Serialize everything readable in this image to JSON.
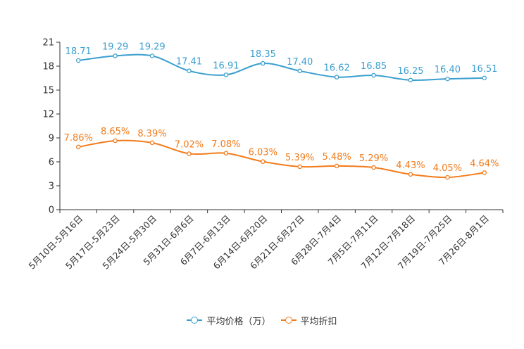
{
  "chart_data": {
    "type": "line",
    "categories": [
      "5月10日-5月16日",
      "5月17日-5月23日",
      "5月24日-5月30日",
      "5月31日-6月6日",
      "6月7日-6月13日",
      "6月14日-6月20日",
      "6月21日-6月27日",
      "6月28日-7月4日",
      "7月5日-7月11日",
      "7月12日-7月18日",
      "7月19日-7月25日",
      "7月26日-8月1日"
    ],
    "ylim": [
      0,
      21
    ],
    "yticks": [
      0,
      3,
      6,
      9,
      12,
      15,
      18,
      21
    ],
    "ytick_labels": [
      "0",
      "3",
      "6",
      "9",
      "12",
      "15",
      "18",
      "21"
    ],
    "series": [
      {
        "name": "平均价格（万）",
        "color": "#3a9fcf",
        "values": [
          18.71,
          19.29,
          19.29,
          17.41,
          16.91,
          18.35,
          17.4,
          16.62,
          16.85,
          16.25,
          16.4,
          16.51
        ],
        "labels": [
          "18.71",
          "19.29",
          "19.29",
          "17.41",
          "16.91",
          "18.35",
          "17.40",
          "16.62",
          "16.85",
          "16.25",
          "16.40",
          "16.51"
        ]
      },
      {
        "name": "平均折扣",
        "color": "#f27b1b",
        "values": [
          7.86,
          8.65,
          8.39,
          7.02,
          7.08,
          6.03,
          5.39,
          5.48,
          5.29,
          4.43,
          4.05,
          4.64
        ],
        "labels": [
          "7.86%",
          "8.65%",
          "8.39%",
          "7.02%",
          "7.08%",
          "6.03%",
          "5.39%",
          "5.48%",
          "5.29%",
          "4.43%",
          "4.05%",
          "4.64%"
        ]
      }
    ],
    "legend_position": "bottom-center"
  }
}
